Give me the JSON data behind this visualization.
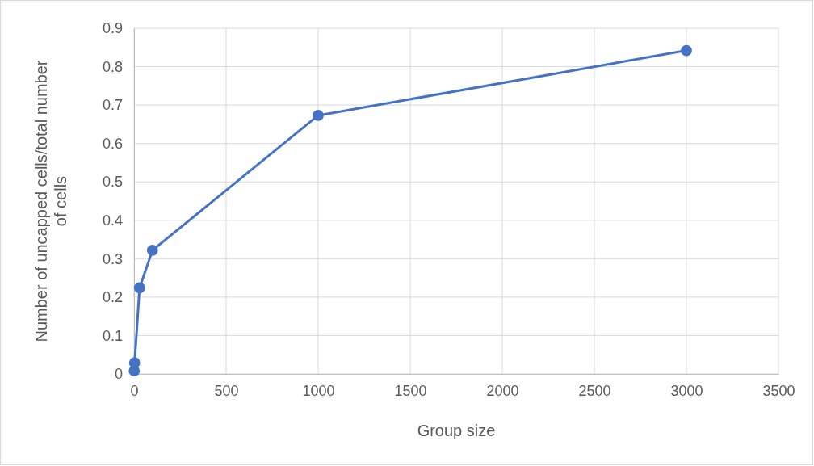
{
  "chart_data": {
    "type": "line",
    "xlabel": "Group size",
    "ylabel": "Number of uncapped cells/total number of cells",
    "x": [
      1,
      3,
      30,
      100,
      1000,
      3000
    ],
    "series": [
      {
        "color": "#4472c4",
        "values": [
          0.008,
          0.029,
          0.224,
          0.322,
          0.673,
          0.842
        ]
      }
    ],
    "xlim": [
      0,
      3500
    ],
    "xticks": [
      0,
      500,
      1000,
      1500,
      2000,
      2500,
      3000,
      3500
    ],
    "ylim": [
      0,
      0.9
    ],
    "yticks": [
      0,
      0.1,
      0.2,
      0.3,
      0.4,
      0.5,
      0.6,
      0.7,
      0.8,
      0.9
    ],
    "grid": true,
    "marker": "circle",
    "line_style": "solid"
  }
}
